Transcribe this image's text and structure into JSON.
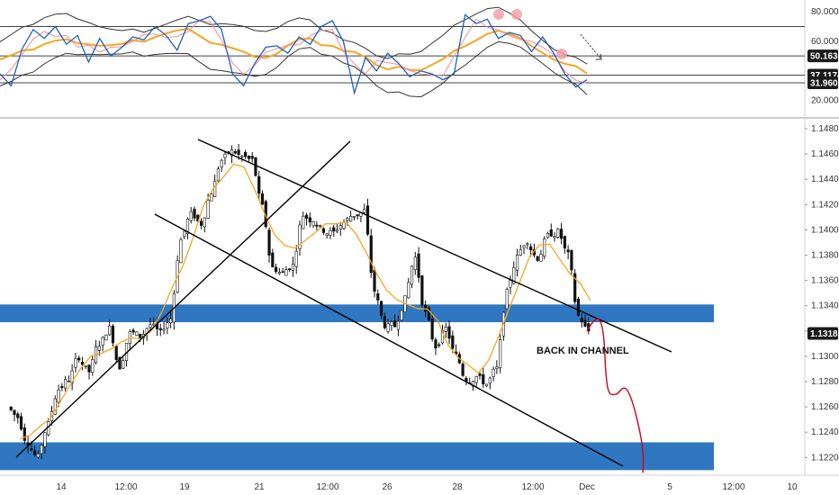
{
  "colors": {
    "bull": "#ffffff",
    "bear": "#111111",
    "wick": "#111111",
    "ma": "#f5a623",
    "zone": "#2f77c1",
    "projection": "#d0021b",
    "rsi": "#1f5fbf",
    "rsi_signal": "#f28e9c",
    "rsi_ma": "#f5a623",
    "bands": "#333333",
    "marker": "#f4a0a8",
    "badge_bg": "#1a1a1a"
  },
  "chart_data": [
    {
      "type": "line",
      "title": "",
      "y_axis": {
        "ticks": [
          "80.0000",
          "60.0000",
          "20.0000"
        ],
        "ylim": [
          10,
          88
        ],
        "badges": [
          "50.1632",
          "37.1174",
          "31.9602"
        ]
      },
      "reference_levels": [
        70,
        50.1632,
        37.1174,
        31.9602
      ],
      "series": [
        {
          "values": [
            38,
            30,
            55,
            68,
            62,
            70,
            58,
            64,
            46,
            62,
            50,
            56,
            63,
            61,
            70,
            64,
            54,
            72,
            74,
            77,
            68,
            38,
            30,
            45,
            56,
            57,
            52,
            63,
            58,
            70,
            74,
            60,
            25,
            49,
            40,
            52,
            45,
            36,
            40,
            38,
            34,
            38,
            78,
            72,
            75,
            62,
            66,
            64,
            53,
            63,
            52,
            38,
            29,
            34
          ]
        }
      ]
    },
    {
      "type": "candlestick",
      "title": "",
      "y_axis": {
        "ticks": [
          "1.14800",
          "1.14600",
          "1.14400",
          "1.14200",
          "1.14000",
          "1.13800",
          "1.13600",
          "1.13400",
          "1.13200",
          "1.13000",
          "1.12800",
          "1.12600",
          "1.12400",
          "1.12200"
        ],
        "ylim": [
          1.1206,
          1.1485
        ],
        "last_price": "1.13181"
      },
      "x_axis": {
        "ticks": [
          "14",
          "12:00",
          "19",
          "21",
          "12:00",
          "26",
          "28",
          "12:00",
          "Dec",
          "5",
          "12:00",
          "10"
        ]
      },
      "series": [
        {
          "name": "price",
          "values": [
            1.1252,
            1.1232,
            1.122,
            1.1246,
            1.1274,
            1.1282,
            1.13,
            1.1288,
            1.131,
            1.1322,
            1.1292,
            1.1318,
            1.1316,
            1.1325,
            1.1318,
            1.133,
            1.1392,
            1.1412,
            1.1405,
            1.143,
            1.1455,
            1.1462,
            1.1458,
            1.1455,
            1.1418,
            1.137,
            1.1366,
            1.1372,
            1.1412,
            1.1408,
            1.14,
            1.1398,
            1.1406,
            1.1412,
            1.1415,
            1.1352,
            1.1325,
            1.1324,
            1.1345,
            1.1378,
            1.1334,
            1.1308,
            1.1322,
            1.13,
            1.1282,
            1.1284,
            1.1278,
            1.129,
            1.135,
            1.1378,
            1.1392,
            1.1378,
            1.1395,
            1.1398,
            1.138,
            1.1332,
            1.132
          ]
        }
      ],
      "zones": [
        {
          "from": 1.1327,
          "to": 1.1341
        },
        {
          "from": 1.121,
          "to": 1.1232
        }
      ],
      "projection": [
        1.132,
        1.1335,
        1.13,
        1.127,
        1.1288,
        1.1255,
        1.1208
      ],
      "annotations": [
        "BACK IN CHANNEL"
      ]
    }
  ]
}
